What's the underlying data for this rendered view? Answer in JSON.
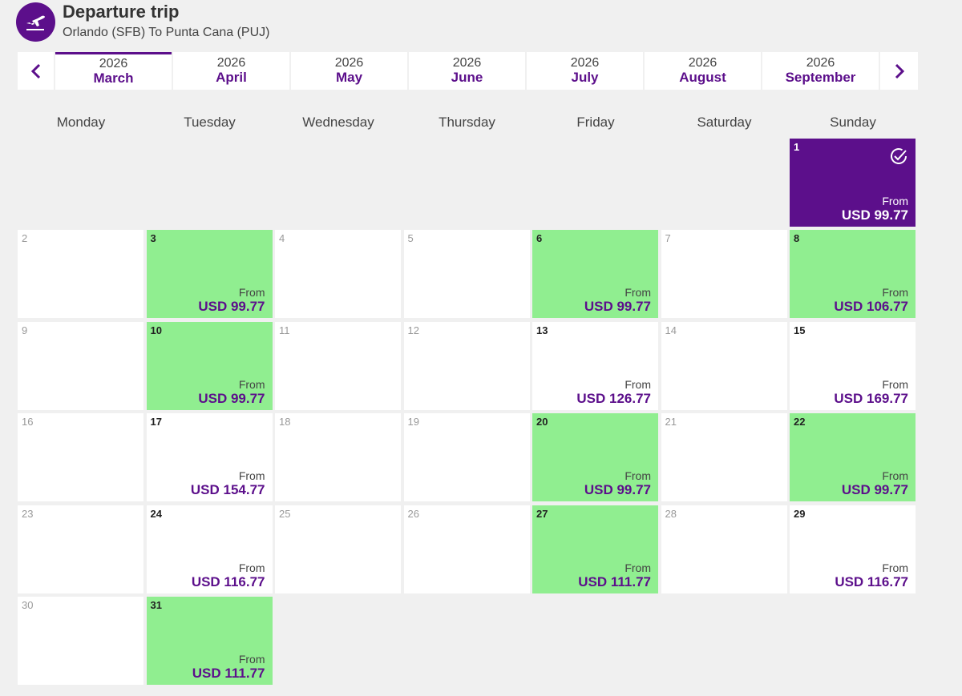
{
  "header": {
    "title": "Departure trip",
    "route": "Orlando (SFB) To Punta Cana (PUJ)",
    "icon": "airplane-takeoff-icon",
    "accent_color": "#5c0f8b"
  },
  "months": [
    {
      "year": "2026",
      "name": "March",
      "active": true
    },
    {
      "year": "2026",
      "name": "April",
      "active": false
    },
    {
      "year": "2026",
      "name": "May",
      "active": false
    },
    {
      "year": "2026",
      "name": "June",
      "active": false
    },
    {
      "year": "2026",
      "name": "July",
      "active": false
    },
    {
      "year": "2026",
      "name": "August",
      "active": false
    },
    {
      "year": "2026",
      "name": "September",
      "active": false
    }
  ],
  "weekdays": [
    "Monday",
    "Tuesday",
    "Wednesday",
    "Thursday",
    "Friday",
    "Saturday",
    "Sunday"
  ],
  "colors": {
    "cheapest": "#90ee90",
    "selected": "#5c0f8b",
    "available": "#ffffff"
  },
  "calendar": {
    "from_label": "From",
    "first_weekday_index": 6,
    "days": [
      {
        "day": "1",
        "status": "selected",
        "price": "USD 99.77"
      },
      {
        "day": "2",
        "status": "empty"
      },
      {
        "day": "3",
        "status": "cheap",
        "price": "USD 99.77"
      },
      {
        "day": "4",
        "status": "empty"
      },
      {
        "day": "5",
        "status": "empty"
      },
      {
        "day": "6",
        "status": "cheap",
        "price": "USD 99.77"
      },
      {
        "day": "7",
        "status": "empty"
      },
      {
        "day": "8",
        "status": "cheap",
        "price": "USD 106.77"
      },
      {
        "day": "9",
        "status": "empty"
      },
      {
        "day": "10",
        "status": "cheap",
        "price": "USD 99.77"
      },
      {
        "day": "11",
        "status": "empty"
      },
      {
        "day": "12",
        "status": "empty"
      },
      {
        "day": "13",
        "status": "available",
        "price": "USD 126.77"
      },
      {
        "day": "14",
        "status": "empty"
      },
      {
        "day": "15",
        "status": "available",
        "price": "USD 169.77"
      },
      {
        "day": "16",
        "status": "empty"
      },
      {
        "day": "17",
        "status": "available",
        "price": "USD 154.77"
      },
      {
        "day": "18",
        "status": "empty"
      },
      {
        "day": "19",
        "status": "empty"
      },
      {
        "day": "20",
        "status": "cheap",
        "price": "USD 99.77"
      },
      {
        "day": "21",
        "status": "empty"
      },
      {
        "day": "22",
        "status": "cheap",
        "price": "USD 99.77"
      },
      {
        "day": "23",
        "status": "empty"
      },
      {
        "day": "24",
        "status": "available",
        "price": "USD 116.77"
      },
      {
        "day": "25",
        "status": "empty"
      },
      {
        "day": "26",
        "status": "empty"
      },
      {
        "day": "27",
        "status": "cheap",
        "price": "USD 111.77"
      },
      {
        "day": "28",
        "status": "empty"
      },
      {
        "day": "29",
        "status": "available",
        "price": "USD 116.77"
      },
      {
        "day": "30",
        "status": "empty"
      },
      {
        "day": "31",
        "status": "cheap",
        "price": "USD 111.77"
      }
    ]
  }
}
